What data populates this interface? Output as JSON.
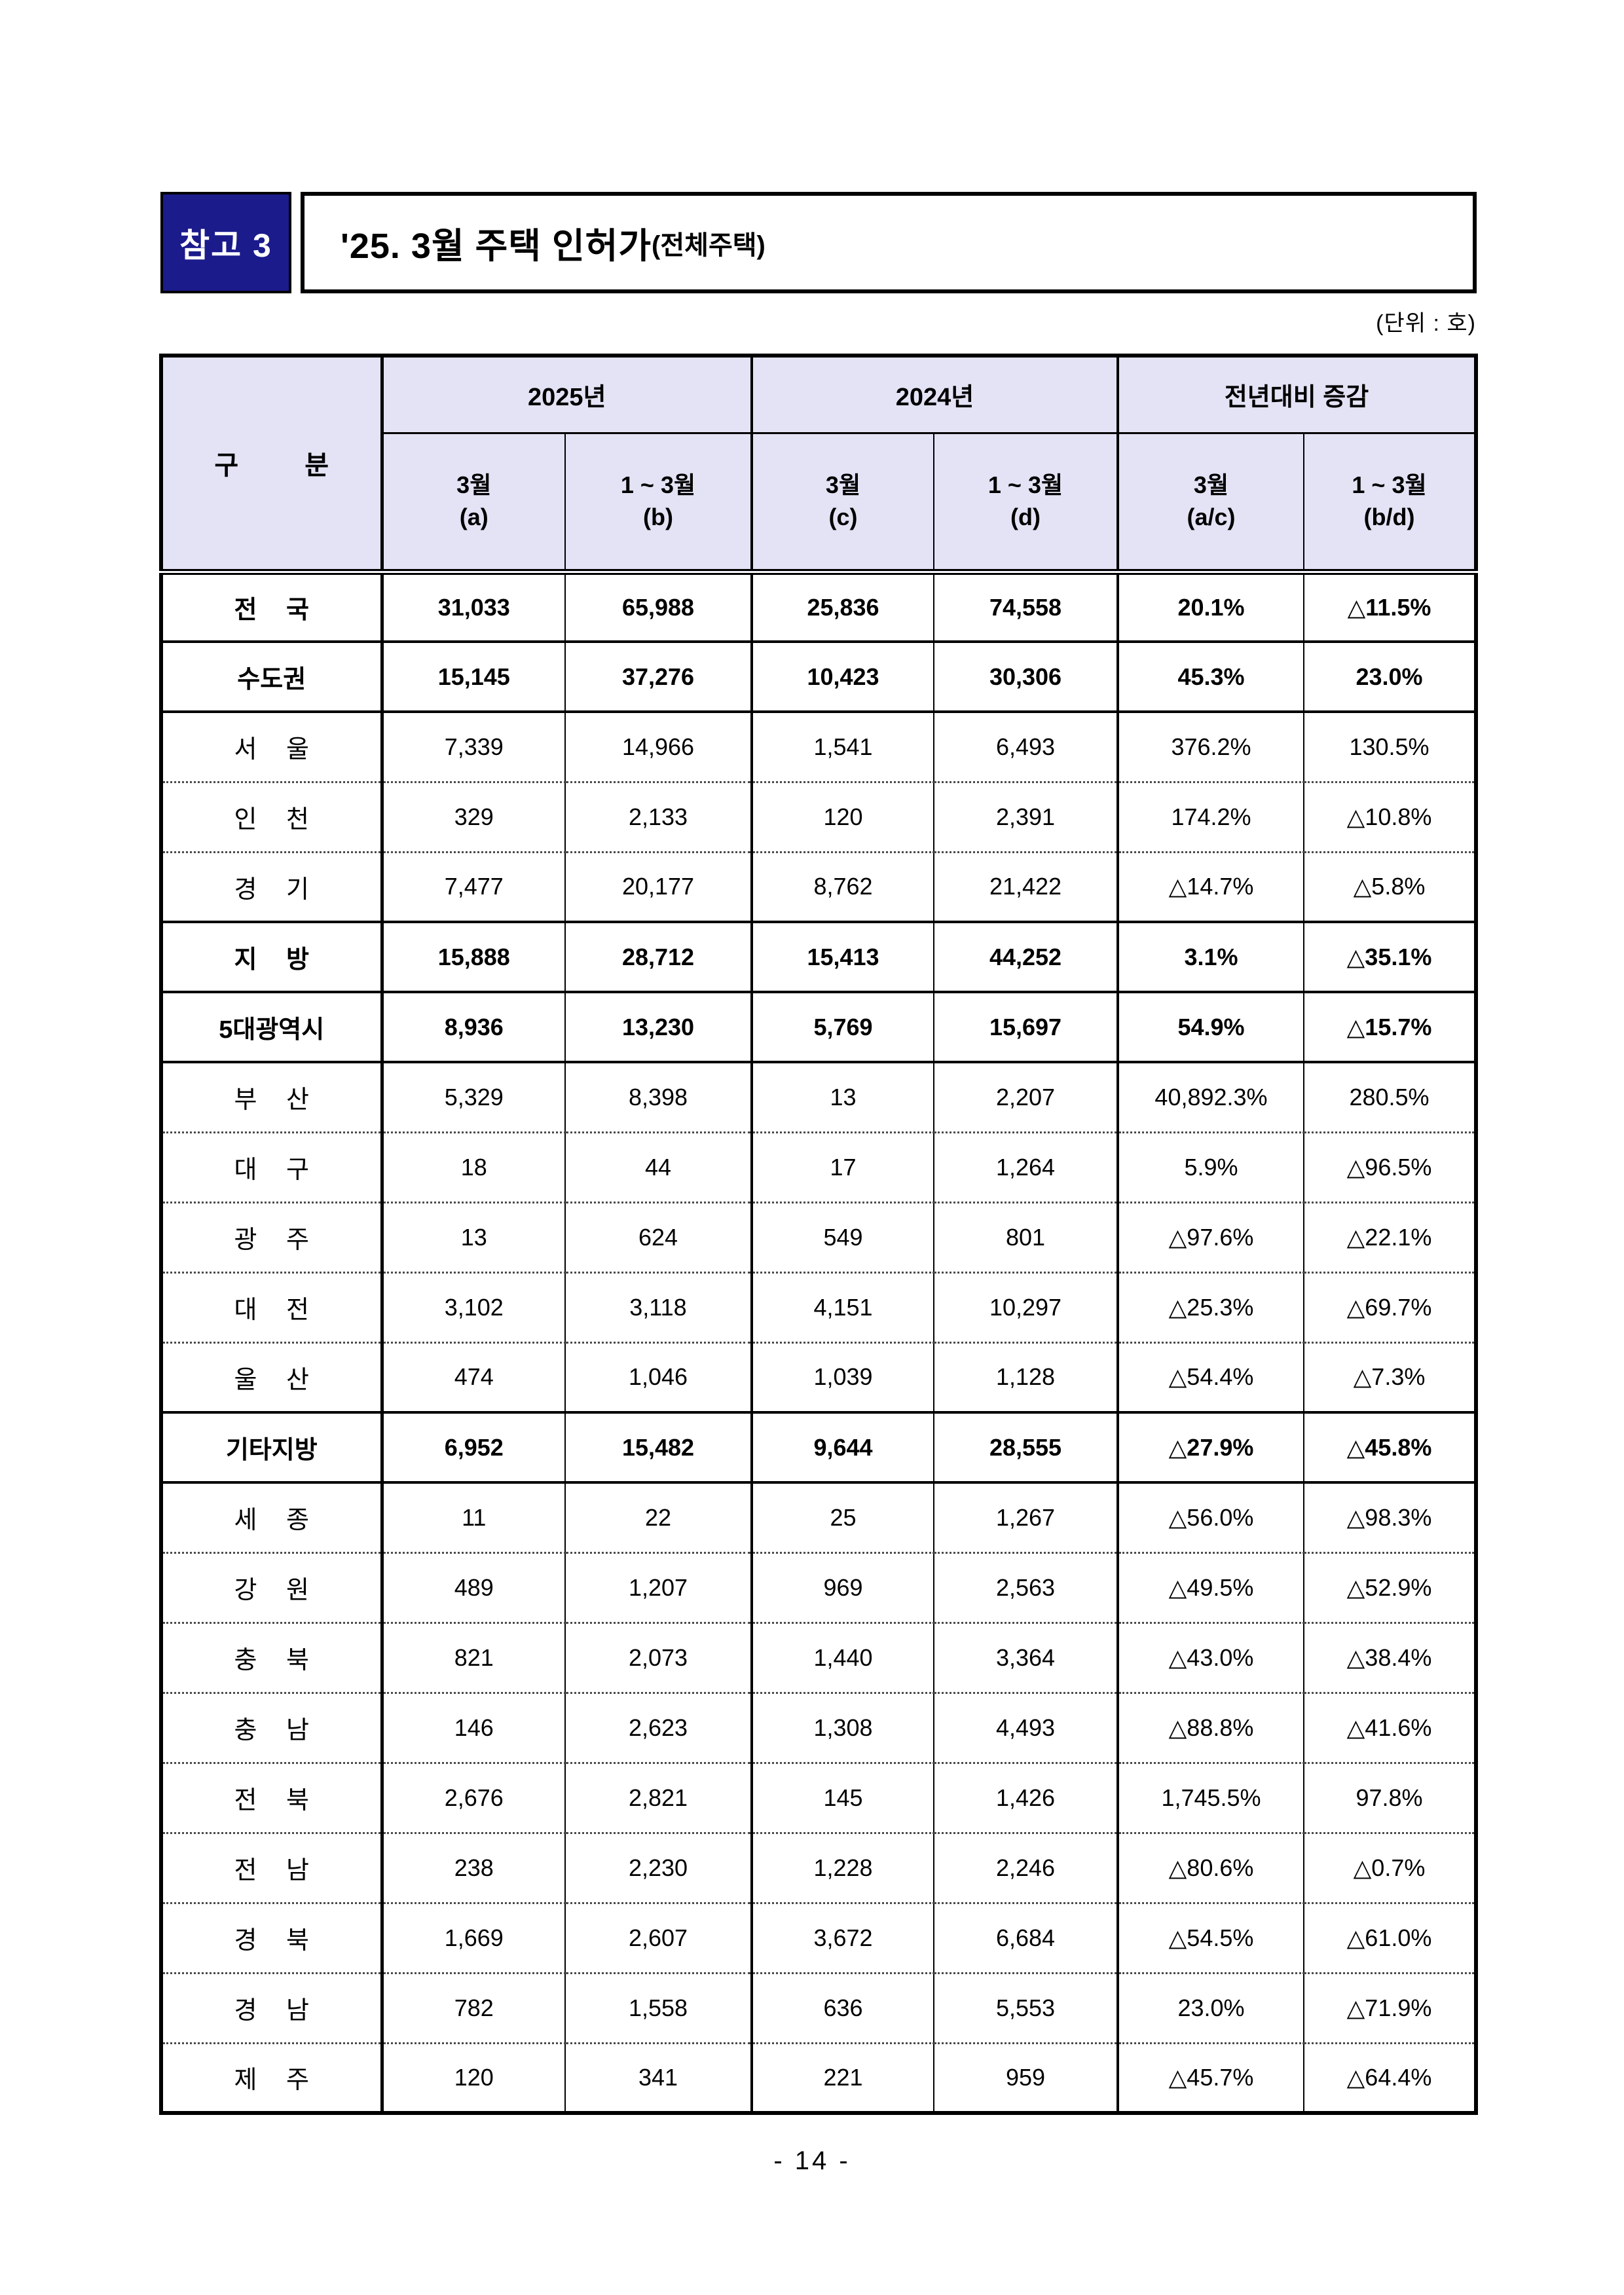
{
  "page": {
    "badge_label": "참고 3",
    "title_main": "'25. 3월 주택 인허가",
    "title_sub": "(전체주택)",
    "unit_note": "(단위 : 호)",
    "footer_page": "- 14 -"
  },
  "colors": {
    "badge_bg": "#1B1B8C",
    "header_bg": "#E3E3F5",
    "border": "#000000"
  },
  "table": {
    "header": {
      "category": "구 분",
      "group_2025": "2025년",
      "group_2024": "2024년",
      "group_yoy": "전년대비 증감"
    },
    "sub_headers": [
      {
        "month": "3월",
        "code": "(a)"
      },
      {
        "month": "1 ~ 3월",
        "code": "(b)"
      },
      {
        "month": "3월",
        "code": "(c)"
      },
      {
        "month": "1 ~ 3월",
        "code": "(d)"
      },
      {
        "month": "3월",
        "code": "(a/c)"
      },
      {
        "month": "1 ~ 3월",
        "code": "(b/d)"
      }
    ],
    "rows": [
      {
        "label": "전 국",
        "bold": true,
        "sep": "thick",
        "values": [
          "31,033",
          "65,988",
          "25,836",
          "74,558",
          "20.1%",
          "△11.5%"
        ]
      },
      {
        "label": "수도권",
        "bold": true,
        "sep": "thick",
        "values": [
          "15,145",
          "37,276",
          "10,423",
          "30,306",
          "45.3%",
          "23.0%"
        ]
      },
      {
        "label": "서 울",
        "bold": false,
        "sep": "dotted",
        "values": [
          "7,339",
          "14,966",
          "1,541",
          "6,493",
          "376.2%",
          "130.5%"
        ]
      },
      {
        "label": "인 천",
        "bold": false,
        "sep": "dotted",
        "values": [
          "329",
          "2,133",
          "120",
          "2,391",
          "174.2%",
          "△10.8%"
        ]
      },
      {
        "label": "경 기",
        "bold": false,
        "sep": "thick",
        "values": [
          "7,477",
          "20,177",
          "8,762",
          "21,422",
          "△14.7%",
          "△5.8%"
        ]
      },
      {
        "label": "지 방",
        "bold": true,
        "sep": "thick",
        "values": [
          "15,888",
          "28,712",
          "15,413",
          "44,252",
          "3.1%",
          "△35.1%"
        ]
      },
      {
        "label": "5대광역시",
        "bold": true,
        "sep": "thick",
        "values": [
          "8,936",
          "13,230",
          "5,769",
          "15,697",
          "54.9%",
          "△15.7%"
        ]
      },
      {
        "label": "부 산",
        "bold": false,
        "sep": "dotted",
        "values": [
          "5,329",
          "8,398",
          "13",
          "2,207",
          "40,892.3%",
          "280.5%"
        ]
      },
      {
        "label": "대 구",
        "bold": false,
        "sep": "dotted",
        "values": [
          "18",
          "44",
          "17",
          "1,264",
          "5.9%",
          "△96.5%"
        ]
      },
      {
        "label": "광 주",
        "bold": false,
        "sep": "dotted",
        "values": [
          "13",
          "624",
          "549",
          "801",
          "△97.6%",
          "△22.1%"
        ]
      },
      {
        "label": "대 전",
        "bold": false,
        "sep": "dotted",
        "values": [
          "3,102",
          "3,118",
          "4,151",
          "10,297",
          "△25.3%",
          "△69.7%"
        ]
      },
      {
        "label": "울 산",
        "bold": false,
        "sep": "thick",
        "values": [
          "474",
          "1,046",
          "1,039",
          "1,128",
          "△54.4%",
          "△7.3%"
        ]
      },
      {
        "label": "기타지방",
        "bold": true,
        "sep": "thick",
        "values": [
          "6,952",
          "15,482",
          "9,644",
          "28,555",
          "△27.9%",
          "△45.8%"
        ]
      },
      {
        "label": "세 종",
        "bold": false,
        "sep": "dotted",
        "values": [
          "11",
          "22",
          "25",
          "1,267",
          "△56.0%",
          "△98.3%"
        ]
      },
      {
        "label": "강 원",
        "bold": false,
        "sep": "dotted",
        "values": [
          "489",
          "1,207",
          "969",
          "2,563",
          "△49.5%",
          "△52.9%"
        ]
      },
      {
        "label": "충 북",
        "bold": false,
        "sep": "dotted",
        "values": [
          "821",
          "2,073",
          "1,440",
          "3,364",
          "△43.0%",
          "△38.4%"
        ]
      },
      {
        "label": "충 남",
        "bold": false,
        "sep": "dotted",
        "values": [
          "146",
          "2,623",
          "1,308",
          "4,493",
          "△88.8%",
          "△41.6%"
        ]
      },
      {
        "label": "전 북",
        "bold": false,
        "sep": "dotted",
        "values": [
          "2,676",
          "2,821",
          "145",
          "1,426",
          "1,745.5%",
          "97.8%"
        ]
      },
      {
        "label": "전 남",
        "bold": false,
        "sep": "dotted",
        "values": [
          "238",
          "2,230",
          "1,228",
          "2,246",
          "△80.6%",
          "△0.7%"
        ]
      },
      {
        "label": "경 북",
        "bold": false,
        "sep": "dotted",
        "values": [
          "1,669",
          "2,607",
          "3,672",
          "6,684",
          "△54.5%",
          "△61.0%"
        ]
      },
      {
        "label": "경 남",
        "bold": false,
        "sep": "dotted",
        "values": [
          "782",
          "1,558",
          "636",
          "5,553",
          "23.0%",
          "△71.9%"
        ]
      },
      {
        "label": "제 주",
        "bold": false,
        "sep": "none",
        "values": [
          "120",
          "341",
          "221",
          "959",
          "△45.7%",
          "△64.4%"
        ]
      }
    ]
  }
}
